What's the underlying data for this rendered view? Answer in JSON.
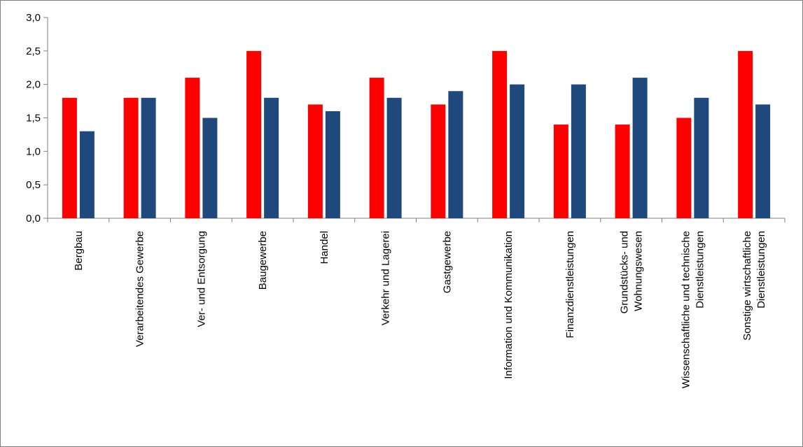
{
  "chart_data": {
    "type": "bar",
    "categories": [
      [
        "Bergbau"
      ],
      [
        "Verarbeitendes Gewerbe"
      ],
      [
        "Ver- und Entsorgung"
      ],
      [
        "Baugewerbe"
      ],
      [
        "Handel"
      ],
      [
        "Verkehr und Lagerei"
      ],
      [
        "Gastgewerbe"
      ],
      [
        "Information und Kommunikation"
      ],
      [
        "Finanzdienstleistungen"
      ],
      [
        "Grundstücks- und",
        "Wohnungswesen"
      ],
      [
        "Wissenschaftliche und technische",
        "Dienstleistungen"
      ],
      [
        "Sonstige wirtschaftliche",
        "Dienstleistungen"
      ]
    ],
    "series": [
      {
        "color": "#ff0000",
        "values": [
          1.8,
          1.8,
          2.1,
          2.5,
          1.7,
          2.1,
          1.7,
          2.5,
          1.4,
          1.4,
          1.5,
          2.5
        ]
      },
      {
        "color": "#1f497d",
        "values": [
          1.3,
          1.8,
          1.5,
          1.8,
          1.6,
          1.8,
          1.9,
          2.0,
          2.0,
          2.1,
          1.8,
          1.7
        ]
      }
    ],
    "yticks": [
      "0,0",
      "0,5",
      "1,0",
      "1,5",
      "2,0",
      "2,5",
      "3,0"
    ],
    "ylim": [
      0,
      3
    ],
    "title": "",
    "xlabel": "",
    "ylabel": "",
    "grid": false,
    "legend": "none"
  }
}
